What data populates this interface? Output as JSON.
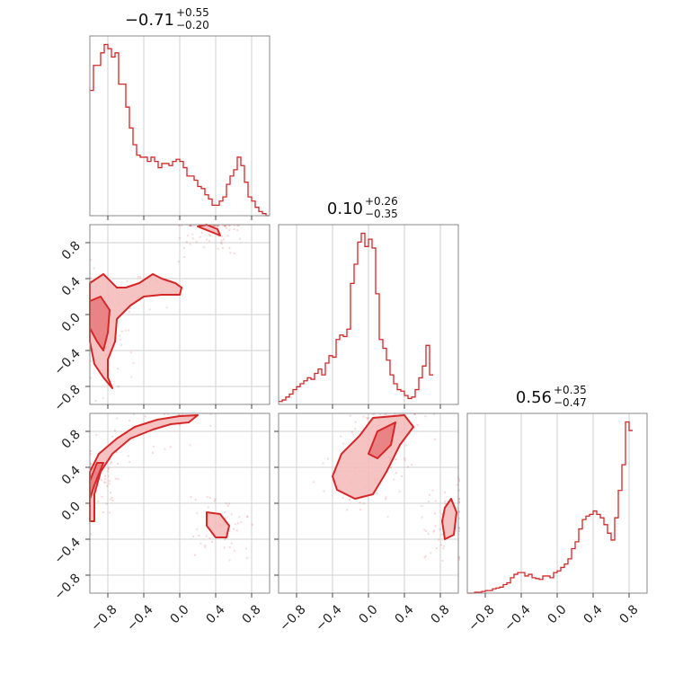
{
  "chart_data": {
    "type": "corner",
    "line_color": "#d62728",
    "fill_light": "#f4b8b9",
    "fill_mid": "#e8787a",
    "axis_range": [
      -1,
      1
    ],
    "ticks": [
      -0.8,
      -0.4,
      0.0,
      0.4,
      0.8
    ],
    "grid": true,
    "parameters": [
      {
        "median": "0.71",
        "median_sign": "−",
        "plus": "+0.55",
        "minus": "−0.20"
      },
      {
        "median": "0.10",
        "median_sign": "",
        "plus": "+0.26",
        "minus": "−0.35"
      },
      {
        "median": "0.56",
        "median_sign": "",
        "plus": "+0.35",
        "minus": "−0.47"
      }
    ],
    "histograms": [
      {
        "bin_edges_start": -1.0,
        "bin_width": 0.04,
        "counts": [
          60,
          72,
          72,
          78,
          82,
          80,
          76,
          78,
          63,
          63,
          52,
          42,
          34,
          29,
          28,
          28,
          26,
          28,
          26,
          23,
          25,
          25,
          24,
          26,
          27,
          26,
          23,
          19,
          19,
          17,
          14,
          13,
          10,
          8,
          5,
          5,
          7,
          9,
          15,
          19,
          22,
          28,
          24,
          16,
          9,
          7,
          4,
          2,
          1,
          0
        ]
      },
      {
        "bin_edges_start": -1.0,
        "bin_width": 0.04,
        "counts": [
          2,
          3,
          5,
          7,
          10,
          12,
          14,
          16,
          18,
          17,
          21,
          24,
          20,
          28,
          33,
          32,
          44,
          47,
          46,
          51,
          82,
          95,
          110,
          116,
          107,
          112,
          106,
          75,
          44,
          38,
          30,
          20,
          14,
          10,
          9,
          6,
          4,
          5,
          10,
          18,
          26,
          40,
          20
        ]
      },
      {
        "bin_edges_start": -1.0,
        "bin_width": 0.04,
        "counts": [
          0,
          0,
          1,
          1,
          2,
          3,
          3,
          5,
          6,
          7,
          10,
          12,
          18,
          22,
          24,
          24,
          20,
          22,
          18,
          17,
          16,
          20,
          20,
          18,
          24,
          26,
          30,
          34,
          40,
          52,
          60,
          75,
          86,
          90,
          92,
          96,
          92,
          88,
          80,
          70,
          62,
          88,
          120,
          150,
          200,
          190
        ]
      }
    ],
    "contours_2d": {
      "y1_vs_x0": [
        {
          "level": "outer",
          "points": [
            [
              -1.0,
              0.35
            ],
            [
              -0.85,
              0.45
            ],
            [
              -0.7,
              0.3
            ],
            [
              -0.6,
              0.3
            ],
            [
              -0.45,
              0.35
            ],
            [
              -0.3,
              0.45
            ],
            [
              -0.2,
              0.4
            ],
            [
              -0.05,
              0.35
            ],
            [
              0.02,
              0.3
            ],
            [
              0.0,
              0.22
            ],
            [
              -0.2,
              0.22
            ],
            [
              -0.4,
              0.2
            ],
            [
              -0.55,
              0.1
            ],
            [
              -0.7,
              -0.05
            ],
            [
              -0.72,
              -0.3
            ],
            [
              -0.8,
              -0.5
            ],
            [
              -0.8,
              -0.7
            ],
            [
              -0.75,
              -0.82
            ],
            [
              -0.85,
              -0.7
            ],
            [
              -0.95,
              -0.55
            ],
            [
              -1.0,
              -0.3
            ]
          ]
        },
        {
          "level": "mid",
          "points": [
            [
              -1.0,
              0.15
            ],
            [
              -0.88,
              0.2
            ],
            [
              -0.78,
              0.05
            ],
            [
              -0.8,
              -0.2
            ],
            [
              -0.85,
              -0.4
            ],
            [
              -0.92,
              -0.3
            ],
            [
              -1.0,
              -0.15
            ]
          ]
        },
        {
          "level": "outer",
          "points": [
            [
              0.2,
              0.98
            ],
            [
              0.35,
              0.92
            ],
            [
              0.45,
              0.88
            ],
            [
              0.42,
              0.95
            ],
            [
              0.3,
              1.0
            ]
          ]
        }
      ],
      "y2_vs_x0": [
        {
          "level": "outer",
          "points": [
            [
              -1.0,
              0.35
            ],
            [
              -0.9,
              0.55
            ],
            [
              -0.7,
              0.72
            ],
            [
              -0.5,
              0.85
            ],
            [
              -0.25,
              0.93
            ],
            [
              0.0,
              0.97
            ],
            [
              0.2,
              0.98
            ],
            [
              0.1,
              0.9
            ],
            [
              -0.1,
              0.88
            ],
            [
              -0.3,
              0.82
            ],
            [
              -0.55,
              0.72
            ],
            [
              -0.75,
              0.55
            ],
            [
              -0.88,
              0.35
            ],
            [
              -0.95,
              0.1
            ],
            [
              -0.95,
              -0.2
            ],
            [
              -1.0,
              -0.2
            ]
          ]
        },
        {
          "level": "mid",
          "points": [
            [
              -1.0,
              0.25
            ],
            [
              -0.92,
              0.45
            ],
            [
              -0.85,
              0.45
            ],
            [
              -0.95,
              0.2
            ],
            [
              -1.0,
              0.05
            ]
          ]
        },
        {
          "level": "outer",
          "points": [
            [
              0.3,
              -0.1
            ],
            [
              0.45,
              -0.12
            ],
            [
              0.55,
              -0.25
            ],
            [
              0.52,
              -0.38
            ],
            [
              0.4,
              -0.38
            ],
            [
              0.3,
              -0.25
            ]
          ]
        }
      ],
      "y2_vs_x1": [
        {
          "level": "outer",
          "points": [
            [
              -0.4,
              0.3
            ],
            [
              -0.3,
              0.55
            ],
            [
              -0.1,
              0.75
            ],
            [
              0.05,
              0.95
            ],
            [
              0.4,
              0.98
            ],
            [
              0.5,
              0.85
            ],
            [
              0.35,
              0.65
            ],
            [
              0.2,
              0.35
            ],
            [
              0.05,
              0.1
            ],
            [
              -0.15,
              0.05
            ],
            [
              -0.35,
              0.15
            ]
          ]
        },
        {
          "level": "mid",
          "points": [
            [
              0.0,
              0.55
            ],
            [
              0.1,
              0.8
            ],
            [
              0.3,
              0.9
            ],
            [
              0.25,
              0.65
            ],
            [
              0.1,
              0.5
            ]
          ]
        },
        {
          "level": "outer",
          "points": [
            [
              0.85,
              -0.05
            ],
            [
              0.92,
              0.05
            ],
            [
              0.98,
              -0.1
            ],
            [
              0.95,
              -0.35
            ],
            [
              0.85,
              -0.4
            ],
            [
              0.82,
              -0.2
            ]
          ]
        }
      ]
    },
    "scatter_seed": 7
  }
}
